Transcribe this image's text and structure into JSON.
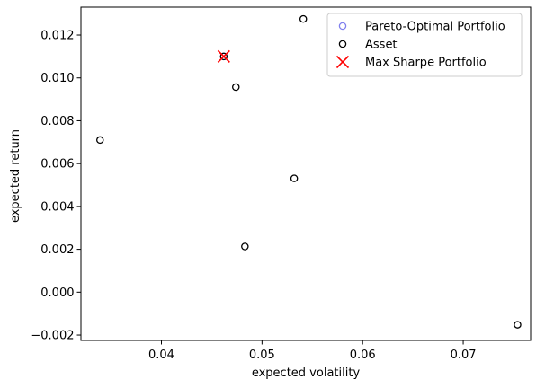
{
  "chart_data": {
    "type": "scatter",
    "title": "",
    "xlabel": "expected volatility",
    "ylabel": "expected return",
    "xlim": [
      0.032,
      0.0767
    ],
    "ylim": [
      -0.00225,
      0.0133
    ],
    "x_ticks": [
      0.04,
      0.05,
      0.06,
      0.07
    ],
    "x_tick_labels": [
      "0.04",
      "0.05",
      "0.06",
      "0.07"
    ],
    "y_ticks": [
      -0.002,
      0.0,
      0.002,
      0.004,
      0.006,
      0.008,
      0.01,
      0.012
    ],
    "y_tick_labels": [
      "−0.002",
      "0.000",
      "0.002",
      "0.004",
      "0.006",
      "0.008",
      "0.010",
      "0.012"
    ],
    "grid": false,
    "legend_position": "top-right",
    "series": [
      {
        "name": "Pareto-Optimal Portfolio",
        "marker": "circle-open",
        "color": "#8080ee",
        "points": [
          [
            0.0462,
            0.011
          ]
        ]
      },
      {
        "name": "Asset",
        "marker": "circle-open",
        "color": "#000000",
        "points": [
          [
            0.0339,
            0.0071
          ],
          [
            0.0462,
            0.011
          ],
          [
            0.0474,
            0.00957
          ],
          [
            0.0483,
            0.00213
          ],
          [
            0.0532,
            0.00531
          ],
          [
            0.0541,
            0.01275
          ],
          [
            0.0754,
            -0.00152
          ]
        ]
      },
      {
        "name": "Max Sharpe Portfolio",
        "marker": "x",
        "color": "#ff0000",
        "points": [
          [
            0.0462,
            0.011
          ]
        ]
      }
    ]
  }
}
